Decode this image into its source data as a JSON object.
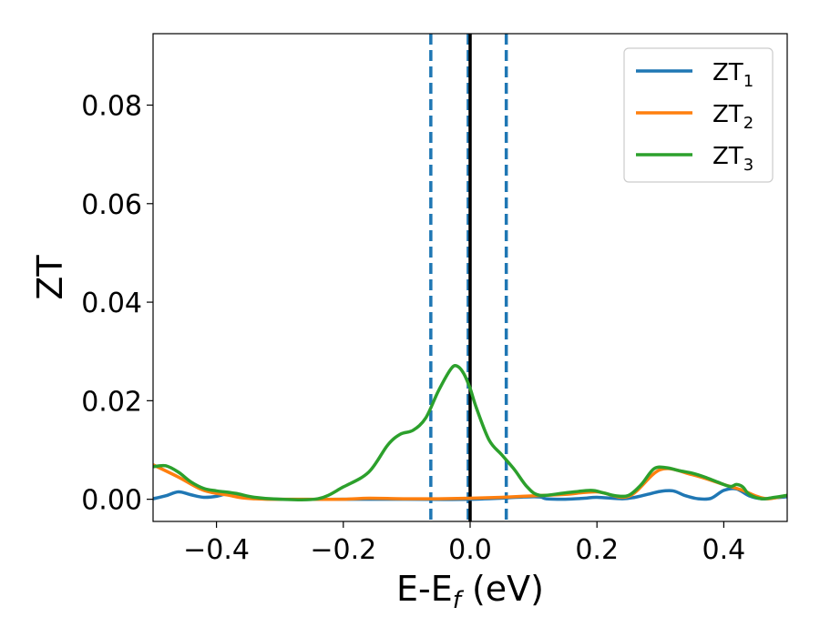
{
  "chart_data": {
    "type": "line",
    "xlabel_main": "E-E",
    "xlabel_sub": "f",
    "xlabel_unit": " (eV)",
    "ylabel": "ZT",
    "xlim": [
      -0.5,
      0.5
    ],
    "ylim": [
      -0.0045,
      0.0945
    ],
    "xticks": [
      -0.4,
      -0.2,
      0.0,
      0.2,
      0.4
    ],
    "xtick_labels": [
      "−0.4",
      "−0.2",
      "0.0",
      "0.2",
      "0.4"
    ],
    "yticks": [
      0.0,
      0.02,
      0.04,
      0.06,
      0.08
    ],
    "ytick_labels": [
      "0.00",
      "0.02",
      "0.04",
      "0.06",
      "0.08"
    ],
    "legend_position": "top-right",
    "vlines": [
      {
        "x": -0.062,
        "style": "dashed",
        "color": "#1f77b4"
      },
      {
        "x": -0.003,
        "style": "dashed",
        "color": "#1f77b4"
      },
      {
        "x": 0.0,
        "style": "solid",
        "color": "#000000"
      },
      {
        "x": 0.057,
        "style": "dashed",
        "color": "#1f77b4"
      }
    ],
    "series": [
      {
        "name": "ZT",
        "subscript": "1",
        "color": "#1f77b4",
        "x": [
          -0.5,
          -0.48,
          -0.46,
          -0.44,
          -0.42,
          -0.4,
          -0.38,
          -0.36,
          -0.34,
          -0.3,
          -0.2,
          -0.1,
          0.0,
          0.1,
          0.12,
          0.15,
          0.18,
          0.2,
          0.24,
          0.26,
          0.28,
          0.3,
          0.32,
          0.34,
          0.36,
          0.38,
          0.4,
          0.42,
          0.44,
          0.46,
          0.48,
          0.5
        ],
        "y": [
          0.0001,
          0.0007,
          0.0015,
          0.0009,
          0.0004,
          0.0006,
          0.0012,
          0.0008,
          0.0003,
          0.0,
          0.0,
          0.0,
          0.0,
          0.0005,
          0.0001,
          0.0,
          0.0002,
          0.0004,
          0.0001,
          0.0004,
          0.001,
          0.0016,
          0.0017,
          0.0007,
          0.0001,
          0.0002,
          0.0018,
          0.0021,
          0.0007,
          0.0001,
          0.0003,
          0.0005
        ]
      },
      {
        "name": "ZT",
        "subscript": "2",
        "color": "#ff7f0e",
        "x": [
          -0.5,
          -0.46,
          -0.42,
          -0.38,
          -0.36,
          -0.34,
          -0.32,
          -0.28,
          -0.2,
          -0.16,
          -0.1,
          -0.05,
          0.0,
          0.05,
          0.1,
          0.15,
          0.2,
          0.25,
          0.3,
          0.35,
          0.4,
          0.43,
          0.45,
          0.47,
          0.5
        ],
        "y": [
          0.007,
          0.0045,
          0.0018,
          0.0008,
          0.0003,
          0.0001,
          0.0,
          0.0,
          0.0,
          0.0002,
          0.0001,
          0.0001,
          0.0002,
          0.0004,
          0.0007,
          0.001,
          0.0015,
          0.0006,
          0.006,
          0.005,
          0.003,
          0.0018,
          0.0007,
          0.0001,
          0.0008
        ]
      },
      {
        "name": "ZT",
        "subscript": "3",
        "color": "#2ca02c",
        "x": [
          -0.5,
          -0.48,
          -0.46,
          -0.44,
          -0.42,
          -0.4,
          -0.37,
          -0.34,
          -0.3,
          -0.24,
          -0.2,
          -0.16,
          -0.13,
          -0.11,
          -0.09,
          -0.07,
          -0.05,
          -0.03,
          -0.02,
          -0.01,
          0.0,
          0.01,
          0.03,
          0.05,
          0.07,
          0.09,
          0.11,
          0.15,
          0.19,
          0.21,
          0.23,
          0.25,
          0.27,
          0.29,
          0.31,
          0.33,
          0.35,
          0.37,
          0.39,
          0.41,
          0.42,
          0.43,
          0.44,
          0.46,
          0.48,
          0.5
        ],
        "y": [
          0.0066,
          0.0068,
          0.0055,
          0.0035,
          0.0022,
          0.0017,
          0.0012,
          0.0004,
          0.0,
          0.0001,
          0.0025,
          0.0055,
          0.011,
          0.0132,
          0.014,
          0.0165,
          0.022,
          0.0265,
          0.027,
          0.0255,
          0.0225,
          0.0185,
          0.012,
          0.009,
          0.006,
          0.0025,
          0.0008,
          0.0013,
          0.0018,
          0.0013,
          0.0007,
          0.0008,
          0.003,
          0.0062,
          0.0064,
          0.0058,
          0.0053,
          0.0045,
          0.0035,
          0.0026,
          0.003,
          0.0025,
          0.001,
          0.0001,
          0.0004,
          0.0008
        ]
      }
    ]
  }
}
